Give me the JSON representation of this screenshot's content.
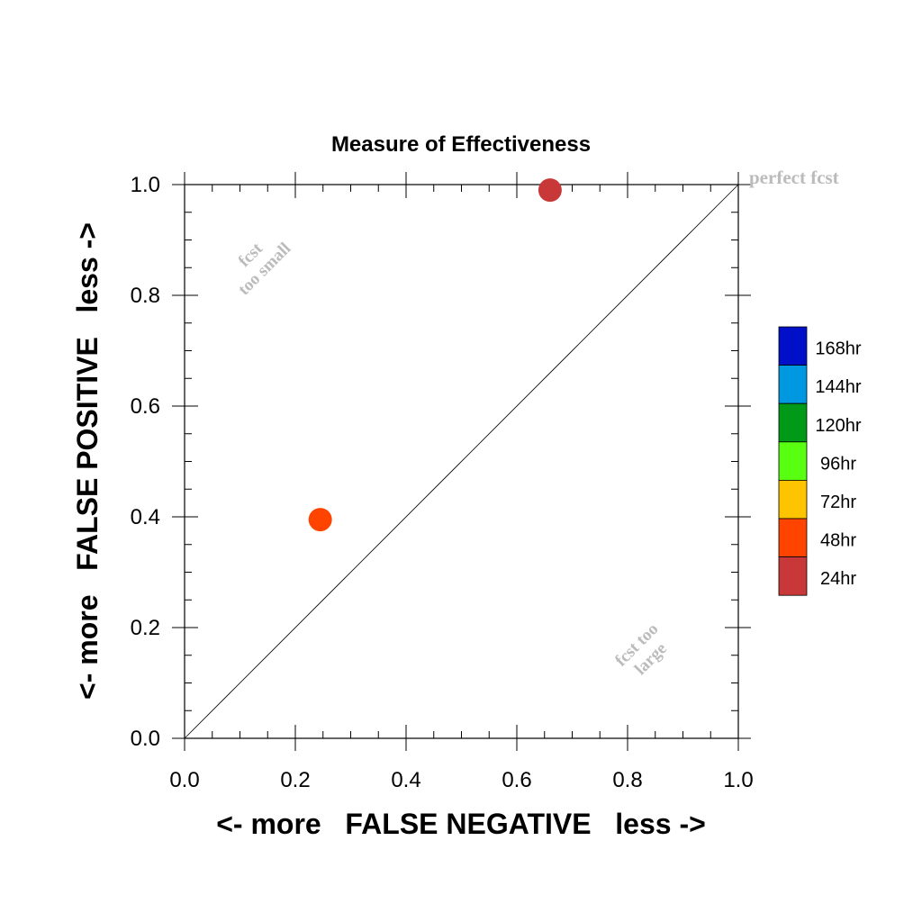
{
  "chart_data": {
    "type": "scatter",
    "title": "Measure of Effectiveness",
    "xlabel": "<- more   FALSE NEGATIVE   less ->",
    "ylabel": "<- more   FALSE POSITIVE   less ->",
    "xlim": [
      0.0,
      1.0
    ],
    "ylim": [
      0.0,
      1.0
    ],
    "xticks": [
      "0.0",
      "0.2",
      "0.4",
      "0.6",
      "0.8",
      "1.0"
    ],
    "yticks": [
      "0.0",
      "0.2",
      "0.4",
      "0.6",
      "0.8",
      "1.0"
    ],
    "grid": false,
    "diagonal_line": true,
    "annotations": {
      "perfect": "perfect fcst",
      "too_small_line1": "fcst",
      "too_small_line2": "too small",
      "too_large_line1": "fcst too",
      "too_large_line2": "large"
    },
    "points": [
      {
        "series": "24hr",
        "x": 0.66,
        "y": 0.99
      },
      {
        "series": "48hr",
        "x": 0.245,
        "y": 0.395
      }
    ],
    "legend": {
      "placement": "right",
      "entries": [
        {
          "label": "168hr",
          "color": "#0010c8"
        },
        {
          "label": "144hr",
          "color": "#0098e0"
        },
        {
          "label": "120hr",
          "color": "#009a18"
        },
        {
          "label": "96hr",
          "color": "#58ff10"
        },
        {
          "label": "72hr",
          "color": "#ffc400"
        },
        {
          "label": "48hr",
          "color": "#ff4400"
        },
        {
          "label": "24hr",
          "color": "#c83838"
        }
      ]
    },
    "annotation_color": "#bbbbbb"
  }
}
